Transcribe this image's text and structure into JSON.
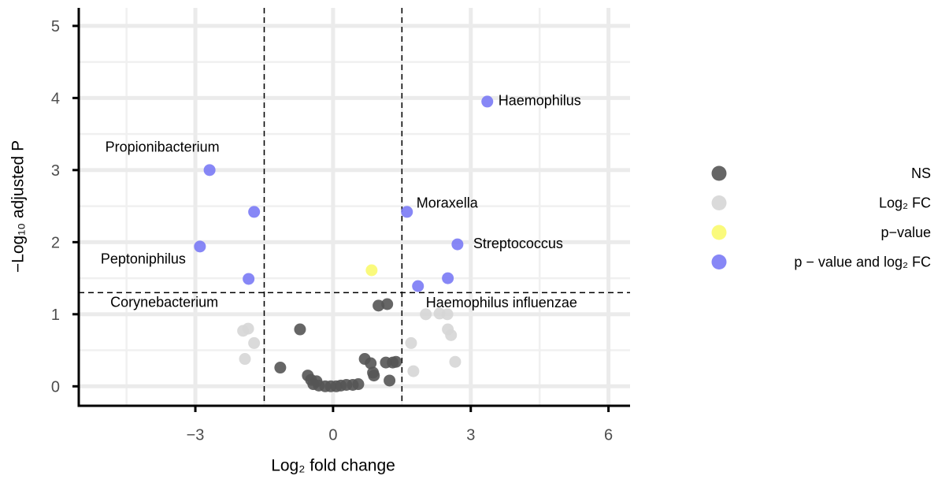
{
  "chart_data": {
    "type": "scatter",
    "xlabel": "Log₂ fold change",
    "ylabel": "−Log₁₀ adjusted P",
    "xlim": [
      -5.54,
      6.47
    ],
    "ylim": [
      -0.27,
      5.25
    ],
    "xticks": [
      {
        "value": -3,
        "label": "−3"
      },
      0,
      3,
      6
    ],
    "yticks": [
      0,
      1,
      2,
      3,
      4,
      5
    ],
    "grid": true,
    "vlines": [
      -1.5,
      1.5
    ],
    "hline": 1.3,
    "legend": "right",
    "series": [
      {
        "name": "NS",
        "color": "#555555",
        "x": [
          -0.72,
          0.99,
          1.18,
          -1.15,
          -0.55,
          0.69,
          0.82,
          0.87,
          0.89,
          1.15,
          1.3,
          1.37,
          1.23,
          -0.43,
          -0.31,
          -0.17,
          -0.05,
          0.07,
          0.17,
          0.29,
          0.43,
          0.55,
          -0.48,
          -0.36
        ],
        "values": [
          0.79,
          1.12,
          1.14,
          0.26,
          0.15,
          0.38,
          0.32,
          0.19,
          0.15,
          0.33,
          0.33,
          0.34,
          0.08,
          0.03,
          0.01,
          0,
          0,
          0,
          0.01,
          0.02,
          0.02,
          0.03,
          0.09,
          0.07
        ]
      },
      {
        "name": "Log₂ FC",
        "color": "#d6d6d6",
        "x": [
          -1.96,
          -1.85,
          -1.72,
          -1.92,
          1.7,
          1.75,
          2.02,
          2.32,
          2.49,
          2.5,
          2.57,
          2.66
        ],
        "values": [
          0.77,
          0.8,
          0.6,
          0.38,
          0.6,
          0.21,
          1.0,
          1.01,
          1.0,
          0.79,
          0.71,
          0.34
        ]
      },
      {
        "name": "p−value",
        "color": "#fafa6e",
        "x": [
          0.84
        ],
        "values": [
          1.61
        ]
      },
      {
        "name": "p − value and log₂ FC",
        "color": "#7a7af5",
        "x": [
          3.36,
          -2.69,
          -1.72,
          -2.9,
          -1.84,
          1.61,
          2.71,
          1.85,
          2.5
        ],
        "values": [
          3.95,
          3.0,
          2.42,
          1.94,
          1.49,
          2.42,
          1.97,
          1.39,
          1.5
        ],
        "labels": [
          "Haemophilus",
          "Propionibacterium",
          null,
          "Peptoniphilus",
          "Corynebacterium",
          "Moraxella",
          "Streptococcus",
          "Haemophilus influenzae",
          null
        ]
      }
    ]
  }
}
